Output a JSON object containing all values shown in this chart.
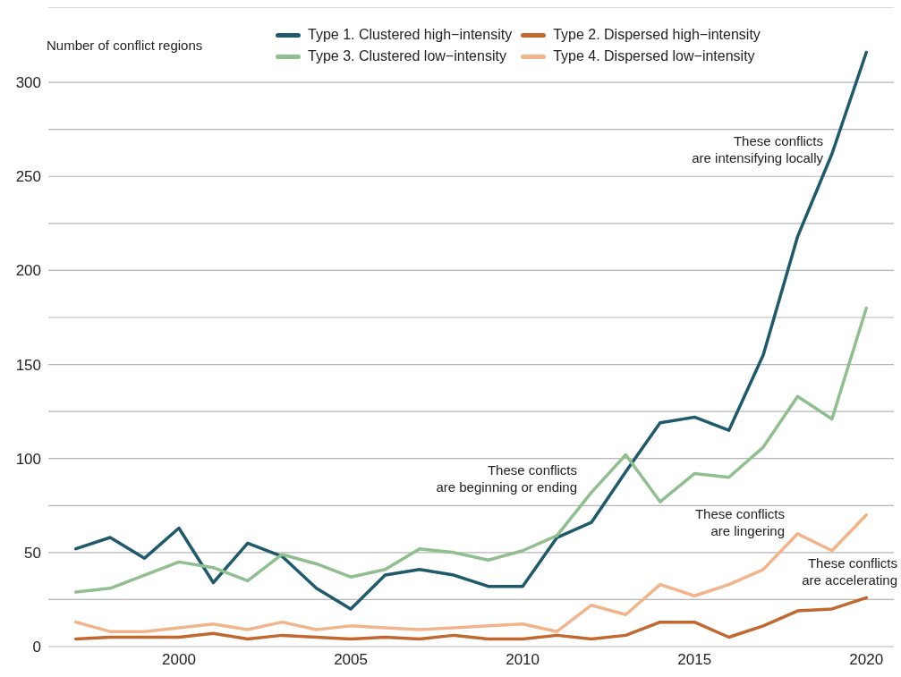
{
  "chart_data": {
    "type": "line",
    "ylabel": "Number of conflict regions",
    "x": [
      1997,
      1998,
      1999,
      2000,
      2001,
      2002,
      2003,
      2004,
      2005,
      2006,
      2007,
      2008,
      2009,
      2010,
      2011,
      2012,
      2013,
      2014,
      2015,
      2016,
      2017,
      2018,
      2019,
      2020
    ],
    "series": [
      {
        "name": "Type 1. Clustered high−intensity",
        "color": "#1e5a6b",
        "values": [
          52,
          58,
          47,
          63,
          34,
          55,
          48,
          31,
          20,
          38,
          41,
          38,
          32,
          32,
          58,
          66,
          93,
          119,
          122,
          115,
          155,
          218,
          262,
          316
        ]
      },
      {
        "name": "Type 2. Dispersed high−intensity",
        "color": "#c0682f",
        "values": [
          4,
          5,
          5,
          5,
          7,
          4,
          6,
          5,
          4,
          5,
          4,
          6,
          4,
          4,
          6,
          4,
          6,
          13,
          13,
          5,
          11,
          19,
          20,
          26
        ]
      },
      {
        "name": "Type 3. Clustered low−intensity",
        "color": "#8fbf8f",
        "values": [
          29,
          31,
          38,
          45,
          42,
          35,
          49,
          44,
          37,
          41,
          52,
          50,
          46,
          51,
          59,
          82,
          102,
          77,
          92,
          90,
          106,
          133,
          121,
          180
        ]
      },
      {
        "name": "Type 4. Dispersed low−intensity",
        "color": "#f2b48a",
        "values": [
          13,
          8,
          8,
          10,
          12,
          9,
          13,
          9,
          11,
          10,
          9,
          10,
          11,
          12,
          8,
          22,
          17,
          33,
          27,
          33,
          41,
          60,
          51,
          70
        ]
      }
    ],
    "xlim": [
      1996.2,
      2020.8
    ],
    "xticks": [
      2000,
      2005,
      2010,
      2015,
      2020
    ],
    "ylim": [
      0,
      340
    ],
    "yticks": [
      0,
      {
        "value": 25,
        "label": null
      },
      50,
      {
        "value": 75,
        "label": null
      },
      100,
      {
        "value": 125,
        "label": null
      },
      150,
      {
        "value": 175,
        "label": null
      },
      200,
      {
        "value": 225,
        "label": null
      },
      250,
      {
        "value": 275,
        "label": null
      },
      300
    ],
    "grid": "y",
    "legend": "top",
    "marker": "none",
    "line_style": "solid",
    "annotations": [
      "These conflicts\nare intensifying locally",
      "These conflicts\nare beginning or ending",
      "These conflicts\nare lingering",
      "These conflicts\nare accelerating"
    ]
  }
}
